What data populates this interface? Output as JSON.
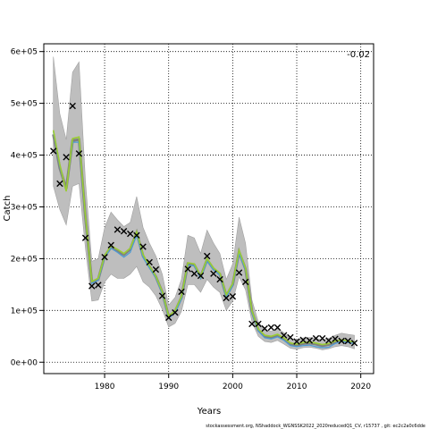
{
  "chart_data": {
    "type": "line",
    "xlabel": "Years",
    "ylabel": "Catch",
    "corner_label": "-0.02",
    "footer": "stockassessment.org, NShaddock_WGNSSK2022_2020reducedQ1_CV, r15737 , git: ec2c2a0c6dde",
    "xlim": [
      1970.5,
      2022
    ],
    "ylim": [
      -22000,
      615000
    ],
    "x_ticks": [
      1980,
      1990,
      2000,
      2010,
      2020
    ],
    "x_tick_labels": [
      "1980",
      "1990",
      "2000",
      "2010",
      "2020"
    ],
    "y_ticks": [
      0,
      100000,
      200000,
      300000,
      400000,
      500000,
      600000
    ],
    "y_tick_labels": [
      "0e+00",
      "1e+05",
      "2e+05",
      "3e+05",
      "4e+05",
      "5e+05",
      "6e+05"
    ],
    "grid": true,
    "colors": {
      "band": "#bebebe",
      "estimate": "#808080",
      "alt_line": "#4a9bd6",
      "retro_line": "#9acd32",
      "observed": "#000000"
    },
    "series": [
      {
        "kind": "observed",
        "marker": "x",
        "x": [
          1972,
          1973,
          1974,
          1975,
          1976,
          1977,
          1978,
          1979,
          1980,
          1981,
          1982,
          1983,
          1984,
          1985,
          1986,
          1987,
          1988,
          1989,
          1990,
          1991,
          1992,
          1993,
          1994,
          1995,
          1996,
          1997,
          1998,
          1999,
          2000,
          2001,
          2002,
          2003,
          2004,
          2005,
          2006,
          2007,
          2008,
          2009,
          2010,
          2011,
          2012,
          2013,
          2014,
          2015,
          2016,
          2017,
          2018,
          2019
        ],
        "values": [
          408000,
          345000,
          396000,
          495000,
          403000,
          240000,
          147000,
          149000,
          203000,
          226000,
          256000,
          253000,
          248000,
          245000,
          223000,
          193000,
          179000,
          128000,
          86000,
          96000,
          136000,
          180000,
          171000,
          167000,
          205000,
          171000,
          160000,
          124000,
          127000,
          173000,
          155000,
          74000,
          74000,
          65000,
          67000,
          67000,
          52000,
          48000,
          40000,
          43000,
          42000,
          46000,
          46000,
          42000,
          45000,
          41000,
          41000,
          37000
        ]
      },
      {
        "kind": "estimate",
        "x": [
          1972,
          1973,
          1974,
          1975,
          1976,
          1977,
          1978,
          1979,
          1980,
          1981,
          1982,
          1983,
          1984,
          1985,
          1986,
          1987,
          1988,
          1989,
          1990,
          1991,
          1992,
          1993,
          1994,
          1995,
          1996,
          1997,
          1998,
          1999,
          2000,
          2001,
          2002,
          2003,
          2004,
          2005,
          2006,
          2007,
          2008,
          2009,
          2010,
          2011,
          2012,
          2013,
          2014,
          2015,
          2016,
          2017,
          2018,
          2019
        ],
        "values": [
          440000,
          375000,
          335000,
          428000,
          430000,
          280000,
          155000,
          160000,
          205000,
          222000,
          215000,
          208000,
          218000,
          250000,
          205000,
          185000,
          165000,
          135000,
          88000,
          98000,
          125000,
          190000,
          188000,
          165000,
          198000,
          180000,
          170000,
          128000,
          150000,
          213000,
          180000,
          98000,
          62000,
          50000,
          48000,
          52000,
          45000,
          35000,
          33000,
          36000,
          37000,
          35000,
          32000,
          34000,
          39000,
          42000,
          40000,
          38000
        ],
        "lower": [
          340000,
          295000,
          265000,
          340000,
          345000,
          220000,
          118000,
          120000,
          155000,
          170000,
          162000,
          162000,
          170000,
          185000,
          155000,
          145000,
          128000,
          102000,
          68000,
          75000,
          98000,
          150000,
          150000,
          135000,
          160000,
          145000,
          135000,
          100000,
          118000,
          165000,
          140000,
          78000,
          50000,
          40000,
          38000,
          42000,
          35000,
          27000,
          25000,
          28000,
          29000,
          27000,
          24000,
          26000,
          30000,
          32000,
          30000,
          26000
        ],
        "upper": [
          590000,
          480000,
          430000,
          560000,
          580000,
          350000,
          195000,
          200000,
          260000,
          290000,
          275000,
          262000,
          270000,
          320000,
          260000,
          230000,
          205000,
          170000,
          110000,
          125000,
          160000,
          245000,
          240000,
          210000,
          255000,
          230000,
          210000,
          160000,
          190000,
          280000,
          230000,
          120000,
          78000,
          62000,
          60000,
          65000,
          57000,
          45000,
          43000,
          47000,
          48000,
          46000,
          43000,
          46000,
          52000,
          56000,
          54000,
          52000
        ]
      },
      {
        "kind": "alt_line",
        "x": [
          1972,
          1973,
          1974,
          1975,
          1976,
          1977,
          1978,
          1979,
          1980,
          1981,
          1982,
          1983,
          1984,
          1985,
          1986,
          1987,
          1988,
          1989,
          1990,
          1991,
          1992,
          1993,
          1994,
          1995,
          1996,
          1997,
          1998,
          1999,
          2000,
          2001,
          2002,
          2003,
          2004,
          2005,
          2006,
          2007,
          2008,
          2009,
          2010,
          2011,
          2012,
          2013,
          2014,
          2015,
          2016,
          2017,
          2018,
          2019
        ],
        "values": [
          445000,
          378000,
          332000,
          425000,
          425000,
          278000,
          152000,
          158000,
          202000,
          220000,
          212000,
          203000,
          212000,
          245000,
          202000,
          182000,
          163000,
          132000,
          85000,
          95000,
          122000,
          188000,
          186000,
          162000,
          195000,
          178000,
          168000,
          125000,
          148000,
          210000,
          178000,
          95000,
          60000,
          47000,
          45000,
          49000,
          42000,
          32000,
          30000,
          32000,
          33000,
          30000,
          28000,
          29000,
          36000,
          40000,
          38000,
          36000
        ]
      },
      {
        "kind": "retro_line",
        "x": [
          1972,
          1973,
          1974,
          1975,
          1976,
          1977,
          1978,
          1979,
          1980,
          1981,
          1982,
          1983,
          1984,
          1985,
          1986,
          1987,
          1988,
          1989,
          1990,
          1991,
          1992,
          1993,
          1994,
          1995,
          1996,
          1997,
          1998,
          1999,
          2000,
          2001,
          2002,
          2003,
          2004,
          2005,
          2006,
          2007,
          2008,
          2009,
          2010,
          2011,
          2012,
          2013,
          2014,
          2015,
          2016,
          2017,
          2018,
          2019
        ],
        "values": [
          448000,
          382000,
          330000,
          432000,
          435000,
          282000,
          156000,
          162000,
          206000,
          225000,
          218000,
          210000,
          220000,
          252000,
          208000,
          186000,
          166000,
          136000,
          89000,
          100000,
          127000,
          192000,
          190000,
          166000,
          200000,
          182000,
          172000,
          130000,
          152000,
          216000,
          182000,
          99000,
          64000,
          52000,
          50000,
          54000,
          47000,
          37000,
          35000,
          38000,
          39000,
          37000,
          34000,
          36000,
          41000,
          43000,
          41000,
          39000
        ]
      }
    ]
  }
}
